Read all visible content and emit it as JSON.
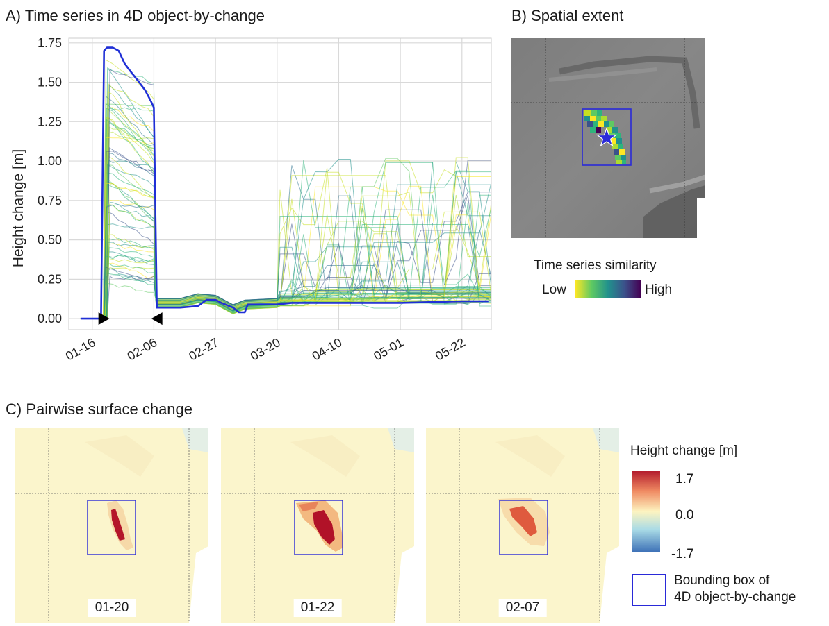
{
  "panels": {
    "a_title": "A) Time series in 4D object-by-change",
    "b_title": "B) Spatial extent",
    "c_title": "C) Pairwise surface change"
  },
  "legend_similarity": {
    "title": "Time series similarity",
    "low": "Low",
    "high": "High"
  },
  "legend_height": {
    "title": "Height change [m]",
    "max": "1.7",
    "mid": "0.0",
    "min": "-1.7",
    "bbox_label_line1": "Bounding box of",
    "bbox_label_line2": "4D object-by-change"
  },
  "pairwise_dates": [
    "01-20",
    "01-22",
    "02-07"
  ],
  "colors": {
    "main_line": "#1f2fd6",
    "bbox": "#2a2ad8",
    "grid": "#d9d9d9",
    "star": "#2b2bd9"
  },
  "chart_data": {
    "type": "line",
    "ylabel": "Height change [m]",
    "xlabel": "",
    "x_tick_labels": [
      "01-16",
      "02-06",
      "02-27",
      "03-20",
      "04-10",
      "05-01",
      "05-22"
    ],
    "y_tick_labels": [
      "0.00",
      "0.25",
      "0.50",
      "0.75",
      "1.00",
      "1.25",
      "1.50",
      "1.75"
    ],
    "ylim": [
      -0.07,
      1.78
    ],
    "xlim": [
      "01-08",
      "06-01"
    ],
    "grid": true,
    "markers": [
      {
        "x": "01-20",
        "y": 0.0,
        "shape": "triangle-right"
      },
      {
        "x": "02-07",
        "y": 0.0,
        "shape": "triangle-left"
      }
    ],
    "series": [
      {
        "x": [
          "01-12",
          "01-19",
          "01-20",
          "01-21",
          "01-23",
          "01-25",
          "01-27",
          "01-29",
          "02-01",
          "02-03",
          "02-05",
          "02-06",
          "02-07",
          "02-08",
          "02-15",
          "02-21",
          "02-24",
          "02-27",
          "03-01",
          "03-05",
          "03-07",
          "03-09",
          "03-10",
          "03-11",
          "03-20",
          "03-25",
          "04-01",
          "04-10",
          "05-01",
          "05-22",
          "05-31"
        ],
        "y": [
          0.0,
          0.0,
          1.7,
          1.72,
          1.72,
          1.7,
          1.62,
          1.57,
          1.5,
          1.45,
          1.38,
          1.34,
          0.07,
          0.07,
          0.07,
          0.08,
          0.12,
          0.12,
          0.1,
          0.07,
          0.04,
          0.04,
          0.09,
          0.09,
          0.09,
          0.1,
          0.1,
          0.1,
          0.1,
          0.11,
          0.11
        ]
      }
    ],
    "ensemble_summary": {
      "count_estimate": 60,
      "colormap": "viridis",
      "plateau_range": [
        0.2,
        1.7
      ],
      "later_spikes_max": 0.95
    }
  }
}
